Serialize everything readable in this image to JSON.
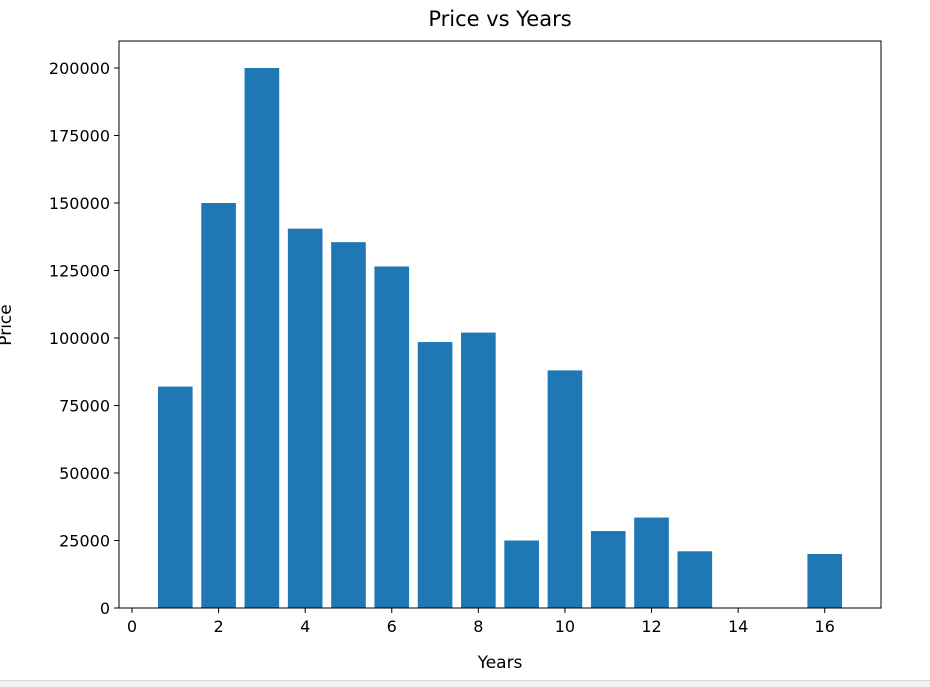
{
  "chart_data": {
    "type": "bar",
    "title": "Price vs Years",
    "xlabel": "Years",
    "ylabel": "Price",
    "x": [
      1,
      2,
      3,
      4,
      5,
      6,
      7,
      8,
      9,
      10,
      11,
      12,
      13,
      16
    ],
    "values": [
      82000,
      150000,
      200000,
      140500,
      135500,
      126500,
      98500,
      102000,
      25000,
      88000,
      28500,
      33500,
      21000,
      20000
    ],
    "xlim": [
      -0.3,
      17.3
    ],
    "ylim": [
      0,
      210000
    ],
    "xticks": [
      0,
      2,
      4,
      6,
      8,
      10,
      12,
      14,
      16
    ],
    "yticks": [
      0,
      25000,
      50000,
      75000,
      100000,
      125000,
      150000,
      175000,
      200000
    ],
    "bar_width": 0.8,
    "color": "#1f77b4",
    "grid": false,
    "legend": "none"
  }
}
